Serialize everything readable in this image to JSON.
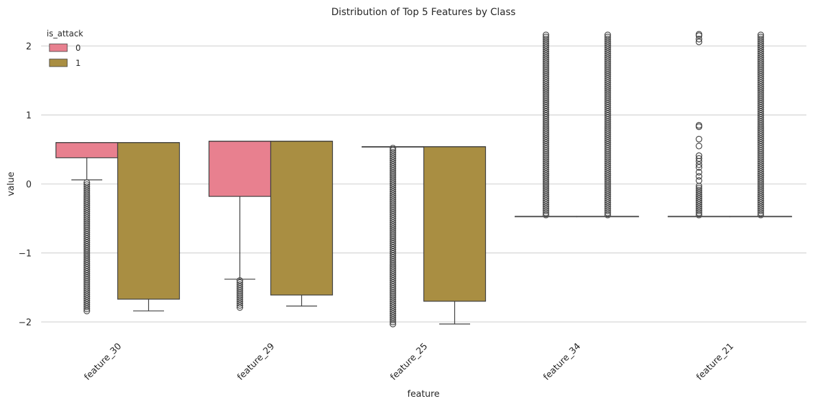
{
  "chart_data": {
    "type": "boxplot",
    "title": "Distribution of Top 5 Features by Class",
    "xlabel": "feature",
    "ylabel": "value",
    "ylim": [
      -2.1,
      2.2
    ],
    "yticks": [
      2,
      1,
      0,
      -1,
      -2
    ],
    "ytick_labels": [
      "2",
      "1",
      "0",
      "−1",
      "−2"
    ],
    "grid": "horizontal",
    "legend": {
      "title": "is_attack",
      "placement": "top-left",
      "entries": [
        {
          "label": "0",
          "color": "#e8808f"
        },
        {
          "label": "1",
          "color": "#a98e42"
        }
      ]
    },
    "categories": [
      "feature_30",
      "feature_29",
      "feature_25",
      "feature_34",
      "feature_21"
    ],
    "series": [
      {
        "name": "0",
        "color": "#e8808f",
        "boxes": [
          {
            "q1": 0.38,
            "median": 0.6,
            "q3": 0.6,
            "whislo": 0.06,
            "whishi": 0.6,
            "fliers": {
              "dense": [
                -1.84,
                0.04
              ]
            }
          },
          {
            "q1": -0.18,
            "median": 0.62,
            "q3": 0.62,
            "whislo": -1.38,
            "whishi": 0.62,
            "fliers": {
              "dense": [
                -1.79,
                -1.39
              ]
            }
          },
          {
            "q1": 0.54,
            "median": 0.54,
            "q3": 0.54,
            "whislo": 0.54,
            "whishi": 0.54,
            "fliers": {
              "dense": [
                -2.03,
                0.52
              ]
            }
          },
          {
            "q1": -0.47,
            "median": -0.47,
            "q3": -0.47,
            "whislo": -0.47,
            "whishi": -0.47,
            "fliers": {
              "dense": [
                -0.45,
                2.16
              ]
            }
          },
          {
            "q1": -0.47,
            "median": -0.47,
            "q3": -0.47,
            "whislo": -0.47,
            "whishi": -0.47,
            "fliers": {
              "dense": [
                -0.45,
                -0.02
              ],
              "points": [
                0.05,
                0.11,
                0.17,
                0.24,
                0.28,
                0.33,
                0.37,
                0.41,
                0.55,
                0.65,
                0.83,
                0.85,
                2.06,
                2.1,
                2.15,
                2.17
              ]
            }
          }
        ]
      },
      {
        "name": "1",
        "color": "#a98e42",
        "boxes": [
          {
            "q1": -1.67,
            "median": 0.6,
            "q3": 0.6,
            "whislo": -1.84,
            "whishi": 0.6,
            "fliers": {}
          },
          {
            "q1": -1.61,
            "median": 0.62,
            "q3": 0.62,
            "whislo": -1.77,
            "whishi": 0.62,
            "fliers": {}
          },
          {
            "q1": -1.7,
            "median": 0.54,
            "q3": 0.54,
            "whislo": -2.03,
            "whishi": 0.54,
            "fliers": {}
          },
          {
            "q1": -0.47,
            "median": -0.47,
            "q3": -0.47,
            "whislo": -0.47,
            "whishi": -0.47,
            "fliers": {
              "dense": [
                -0.45,
                2.16
              ]
            }
          },
          {
            "q1": -0.47,
            "median": -0.47,
            "q3": -0.47,
            "whislo": -0.47,
            "whishi": -0.47,
            "fliers": {
              "dense": [
                -0.45,
                2.16
              ]
            }
          }
        ]
      }
    ]
  }
}
